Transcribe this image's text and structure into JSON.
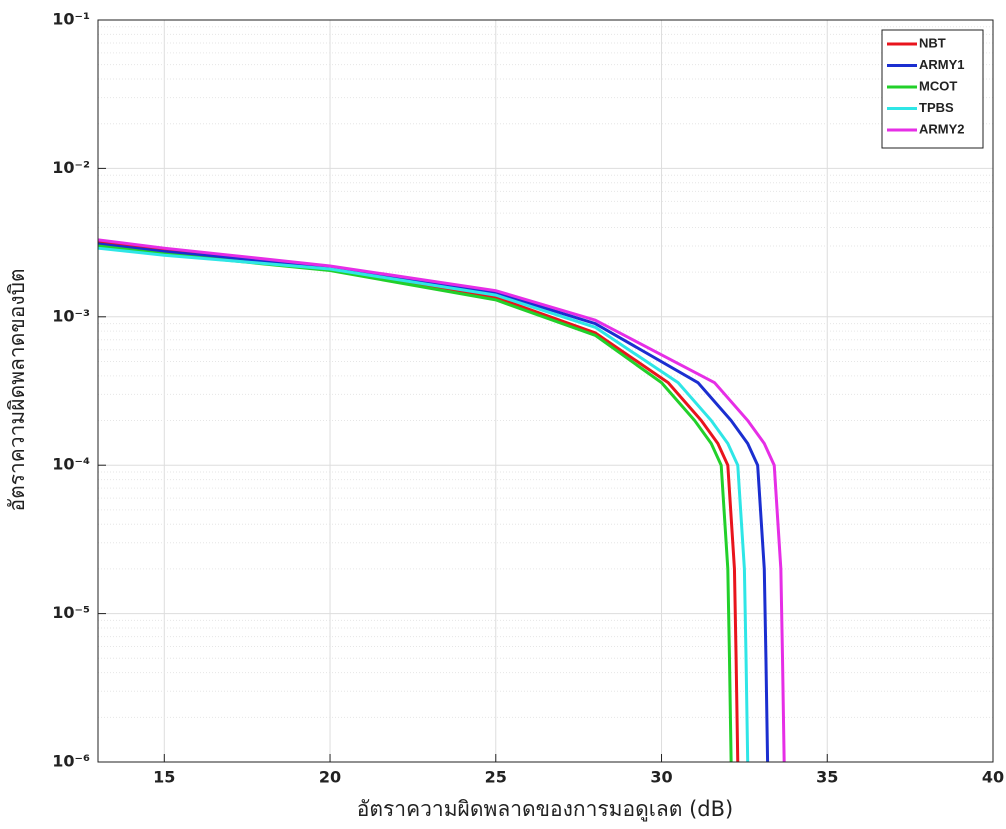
{
  "chart_data": {
    "type": "line",
    "xlabel": "อัตราความผิดพลาดของการมอดูเลต (dB)",
    "ylabel": "อัตราความผิดพลาดของบิต",
    "xlim": [
      13,
      40
    ],
    "xticks": [
      15,
      20,
      25,
      30,
      35,
      40
    ],
    "ylim": [
      1e-06,
      0.1
    ],
    "yticks": [
      {
        "value": 1e-06,
        "label": "10⁻⁶"
      },
      {
        "value": 1e-05,
        "label": "10⁻⁵"
      },
      {
        "value": 0.0001,
        "label": "10⁻⁴"
      },
      {
        "value": 0.001,
        "label": "10⁻³"
      },
      {
        "value": 0.01,
        "label": "10⁻²"
      },
      {
        "value": 0.1,
        "label": "10⁻¹"
      }
    ],
    "log_y": true,
    "grid": true,
    "minor_grid": true,
    "legend": "northeast",
    "series": [
      {
        "name": "NBT",
        "color": "#e8141c",
        "x": [
          13,
          15,
          20,
          25,
          28,
          30.2,
          31.2,
          31.7,
          32.0,
          32.2,
          32.25,
          32.3
        ],
        "values": [
          0.0032,
          0.0028,
          0.0021,
          0.00135,
          0.00078,
          0.00036,
          0.0002,
          0.00014,
          0.0001,
          2e-05,
          5e-06,
          1e-06
        ]
      },
      {
        "name": "ARMY1",
        "color": "#1b2ed0",
        "x": [
          13,
          15,
          20,
          25,
          28,
          31.1,
          32.1,
          32.6,
          32.9,
          33.1,
          33.15,
          33.2
        ],
        "values": [
          0.0031,
          0.00275,
          0.00215,
          0.00145,
          0.0009,
          0.00036,
          0.0002,
          0.00014,
          0.0001,
          2e-05,
          5e-06,
          1e-06
        ]
      },
      {
        "name": "MCOT",
        "color": "#22d02a",
        "x": [
          13,
          15,
          20,
          25,
          28,
          30,
          31,
          31.5,
          31.8,
          32.0,
          32.05,
          32.1
        ],
        "values": [
          0.003,
          0.00265,
          0.00205,
          0.0013,
          0.00075,
          0.00036,
          0.0002,
          0.00014,
          0.0001,
          2e-05,
          5e-06,
          1e-06
        ]
      },
      {
        "name": "TPBS",
        "color": "#2ee6e6",
        "x": [
          13,
          15,
          20,
          25,
          28,
          30.5,
          31.5,
          32.0,
          32.3,
          32.5,
          32.55,
          32.6
        ],
        "values": [
          0.0029,
          0.0026,
          0.0021,
          0.0014,
          0.00085,
          0.00036,
          0.0002,
          0.00014,
          0.0001,
          2e-05,
          5e-06,
          1e-06
        ]
      },
      {
        "name": "ARMY2",
        "color": "#e62ee6",
        "x": [
          13,
          15,
          20,
          25,
          28,
          31.6,
          32.6,
          33.1,
          33.4,
          33.6,
          33.65,
          33.7
        ],
        "values": [
          0.0033,
          0.0029,
          0.0022,
          0.0015,
          0.00095,
          0.00036,
          0.0002,
          0.00014,
          0.0001,
          2e-05,
          5e-06,
          1e-06
        ]
      }
    ]
  }
}
